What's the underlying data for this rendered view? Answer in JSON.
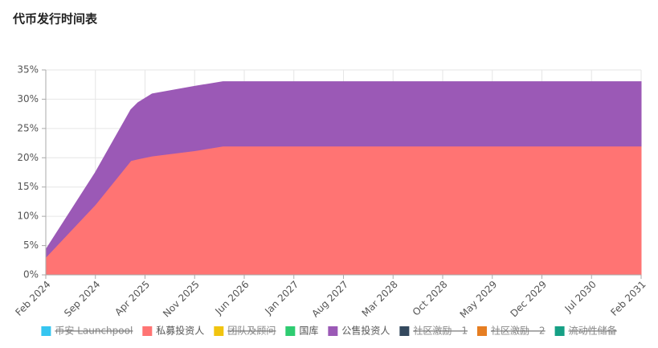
{
  "chart_data": {
    "type": "area",
    "title": "代币发行时间表",
    "stacked": true,
    "grid": true,
    "x": [
      "Feb 2024",
      "Sep 2024",
      "Feb 2025",
      "Mar 2025",
      "May 2025",
      "Nov 2025",
      "Mar 2026",
      "Feb 2031"
    ],
    "xlim": [
      "Feb 2024",
      "Feb 2031"
    ],
    "xticks": [
      "Feb 2024",
      "Sep 2024",
      "Apr 2025",
      "Nov 2025",
      "Jun 2026",
      "Jan 2027",
      "Aug 2027",
      "Mar 2028",
      "Oct 2028",
      "May 2029",
      "Dec 2029",
      "Jul 2030",
      "Feb 2031"
    ],
    "ylim": [
      0,
      35
    ],
    "yticks": [
      {
        "value": 0,
        "label": "0%"
      },
      {
        "value": 5,
        "label": "5%"
      },
      {
        "value": 10,
        "label": "10%"
      },
      {
        "value": 15,
        "label": "15%"
      },
      {
        "value": 20,
        "label": "20%"
      },
      {
        "value": 25,
        "label": "25%"
      },
      {
        "value": 30,
        "label": "30%"
      },
      {
        "value": 35,
        "label": "35%"
      }
    ],
    "legend": "bottom",
    "series": [
      {
        "name": "币安 Launchpool",
        "color": "#36c5f0",
        "hidden": true
      },
      {
        "name": "私募投资人",
        "color": "#ff7473",
        "values": [
          3,
          12,
          19.5,
          19.8,
          20.3,
          21.2,
          22,
          22
        ]
      },
      {
        "name": "团队及顾问",
        "color": "#f1c40f",
        "hidden": true
      },
      {
        "name": "国库",
        "color": "#2ecc71"
      },
      {
        "name": "公售投资人",
        "color": "#9b59b6",
        "values": [
          1.3,
          5.5,
          8.7,
          9.6,
          10.6,
          11,
          11,
          11
        ]
      },
      {
        "name": "社区激励 - 1",
        "color": "#34495e",
        "hidden": true
      },
      {
        "name": "社区激励 - 2",
        "color": "#e67e22",
        "hidden": true
      },
      {
        "name": "流动性储备",
        "color": "#16a085",
        "hidden": true
      }
    ]
  }
}
